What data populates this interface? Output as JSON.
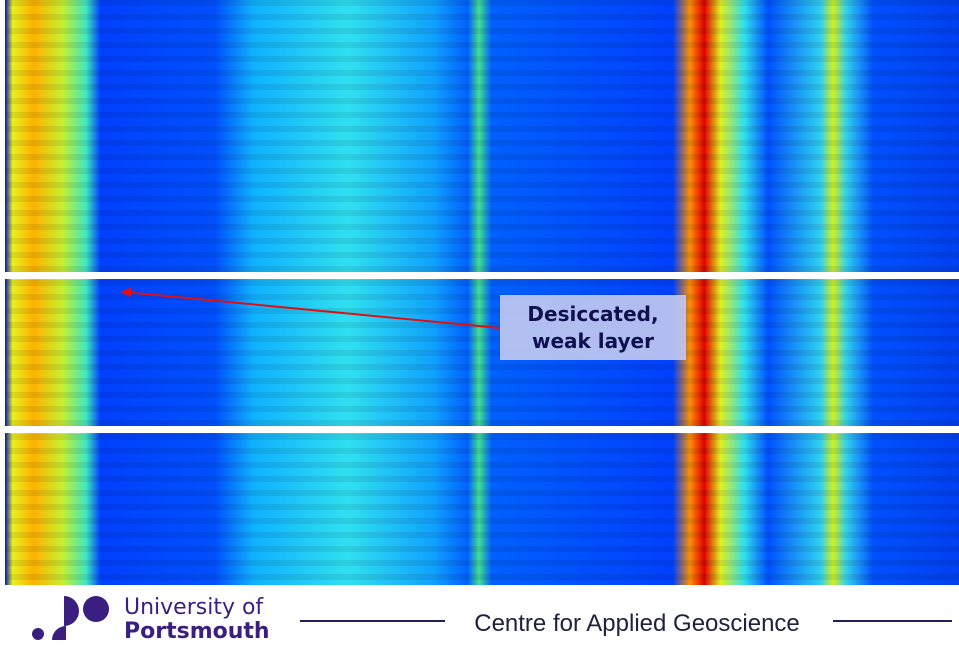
{
  "annotation": {
    "lines": [
      "Desiccated,",
      "weak layer"
    ]
  },
  "footer": {
    "university": [
      "University of",
      "Portsmouth"
    ],
    "centre": "Centre for Applied Geoscience"
  }
}
